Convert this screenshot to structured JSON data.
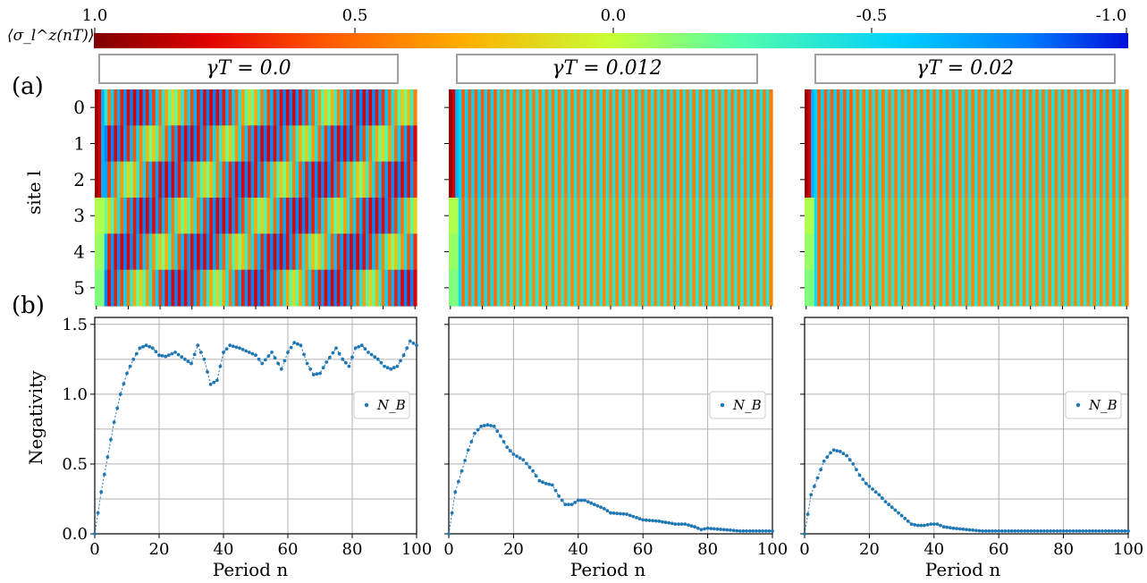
{
  "colorbar": {
    "title": "⟨σ_l^z(nT)⟩",
    "ticks": [
      "1.0",
      "0.5",
      "0.0",
      "-0.5",
      "-1.0"
    ],
    "tick_values": [
      1.0,
      0.5,
      0.0,
      -0.5,
      -1.0
    ],
    "colormap": "jet (reversed: 1.0 = dark red, -1.0 = blue)"
  },
  "panel_labels": {
    "a": "(a)",
    "b": "(b)"
  },
  "heatmap": {
    "ylabel": "site l",
    "site_ticks": [
      "0",
      "1",
      "2",
      "3",
      "4",
      "5"
    ]
  },
  "bottom": {
    "ylabel": "Negativity",
    "xlabel": "Period n",
    "x_ticks": [
      "0",
      "20",
      "40",
      "60",
      "80",
      "100"
    ],
    "y_ticks": [
      "0.0",
      "0.5",
      "1.0",
      "1.5"
    ],
    "legend_label": "N_B"
  },
  "panels": [
    {
      "title": "γT = 0.0",
      "gamma": 0.0
    },
    {
      "title": "γT = 0.012",
      "gamma": 0.012
    },
    {
      "title": "γT = 0.02",
      "gamma": 0.02
    }
  ],
  "colors": {
    "series": "#1f77b4",
    "grid": "#b0b0b0",
    "title_border": "#a0a0a0"
  },
  "chart_data": [
    {
      "type": "line",
      "title": "γT = 0.0",
      "xlabel": "Period n",
      "ylabel": "Negativity",
      "xlim": [
        0,
        100
      ],
      "ylim": [
        0,
        1.5
      ],
      "grid": true,
      "legend": "right",
      "series": [
        {
          "name": "N_B",
          "keypoints": [
            [
              0,
              0.0
            ],
            [
              2,
              0.3
            ],
            [
              4,
              0.55
            ],
            [
              6,
              0.8
            ],
            [
              8,
              1.0
            ],
            [
              10,
              1.15
            ],
            [
              12,
              1.25
            ],
            [
              14,
              1.33
            ],
            [
              16,
              1.35
            ],
            [
              18,
              1.33
            ],
            [
              20,
              1.28
            ],
            [
              22,
              1.27
            ],
            [
              25,
              1.3
            ],
            [
              28,
              1.25
            ],
            [
              30,
              1.22
            ],
            [
              32,
              1.35
            ],
            [
              34,
              1.25
            ],
            [
              36,
              1.07
            ],
            [
              38,
              1.1
            ],
            [
              40,
              1.3
            ],
            [
              42,
              1.35
            ],
            [
              45,
              1.33
            ],
            [
              48,
              1.3
            ],
            [
              50,
              1.28
            ],
            [
              52,
              1.22
            ],
            [
              55,
              1.3
            ],
            [
              58,
              1.18
            ],
            [
              60,
              1.3
            ],
            [
              62,
              1.37
            ],
            [
              64,
              1.35
            ],
            [
              66,
              1.22
            ],
            [
              68,
              1.14
            ],
            [
              70,
              1.15
            ],
            [
              72,
              1.23
            ],
            [
              75,
              1.33
            ],
            [
              77,
              1.25
            ],
            [
              79,
              1.2
            ],
            [
              81,
              1.33
            ],
            [
              83,
              1.35
            ],
            [
              85,
              1.3
            ],
            [
              88,
              1.25
            ],
            [
              90,
              1.2
            ],
            [
              92,
              1.18
            ],
            [
              94,
              1.2
            ],
            [
              96,
              1.28
            ],
            [
              98,
              1.38
            ],
            [
              100,
              1.35
            ]
          ]
        }
      ]
    },
    {
      "type": "line",
      "title": "γT = 0.012",
      "xlabel": "Period n",
      "xlim": [
        0,
        100
      ],
      "ylim": [
        0,
        1.5
      ],
      "grid": true,
      "legend": "right",
      "series": [
        {
          "name": "N_B",
          "keypoints": [
            [
              0,
              0.0
            ],
            [
              2,
              0.3
            ],
            [
              4,
              0.45
            ],
            [
              6,
              0.6
            ],
            [
              8,
              0.72
            ],
            [
              10,
              0.77
            ],
            [
              12,
              0.78
            ],
            [
              14,
              0.77
            ],
            [
              16,
              0.7
            ],
            [
              18,
              0.62
            ],
            [
              20,
              0.57
            ],
            [
              23,
              0.53
            ],
            [
              26,
              0.45
            ],
            [
              28,
              0.38
            ],
            [
              30,
              0.36
            ],
            [
              32,
              0.35
            ],
            [
              34,
              0.27
            ],
            [
              36,
              0.21
            ],
            [
              38,
              0.21
            ],
            [
              40,
              0.24
            ],
            [
              42,
              0.24
            ],
            [
              45,
              0.21
            ],
            [
              48,
              0.18
            ],
            [
              50,
              0.15
            ],
            [
              55,
              0.14
            ],
            [
              60,
              0.1
            ],
            [
              65,
              0.09
            ],
            [
              70,
              0.07
            ],
            [
              73,
              0.07
            ],
            [
              76,
              0.05
            ],
            [
              78,
              0.03
            ],
            [
              80,
              0.04
            ],
            [
              85,
              0.03
            ],
            [
              90,
              0.02
            ],
            [
              95,
              0.02
            ],
            [
              100,
              0.02
            ]
          ]
        }
      ]
    },
    {
      "type": "line",
      "title": "γT = 0.02",
      "xlabel": "Period n",
      "xlim": [
        0,
        100
      ],
      "ylim": [
        0,
        1.5
      ],
      "grid": true,
      "legend": "right",
      "series": [
        {
          "name": "N_B",
          "keypoints": [
            [
              0,
              0.0
            ],
            [
              2,
              0.28
            ],
            [
              4,
              0.4
            ],
            [
              6,
              0.52
            ],
            [
              8,
              0.58
            ],
            [
              9,
              0.6
            ],
            [
              11,
              0.59
            ],
            [
              13,
              0.56
            ],
            [
              15,
              0.5
            ],
            [
              17,
              0.42
            ],
            [
              19,
              0.36
            ],
            [
              21,
              0.32
            ],
            [
              23,
              0.28
            ],
            [
              25,
              0.23
            ],
            [
              27,
              0.19
            ],
            [
              29,
              0.15
            ],
            [
              31,
              0.11
            ],
            [
              33,
              0.07
            ],
            [
              35,
              0.06
            ],
            [
              37,
              0.06
            ],
            [
              39,
              0.07
            ],
            [
              41,
              0.07
            ],
            [
              43,
              0.05
            ],
            [
              46,
              0.04
            ],
            [
              50,
              0.03
            ],
            [
              55,
              0.02
            ],
            [
              60,
              0.02
            ],
            [
              70,
              0.02
            ],
            [
              80,
              0.02
            ],
            [
              90,
              0.02
            ],
            [
              100,
              0.02
            ]
          ]
        }
      ]
    }
  ]
}
